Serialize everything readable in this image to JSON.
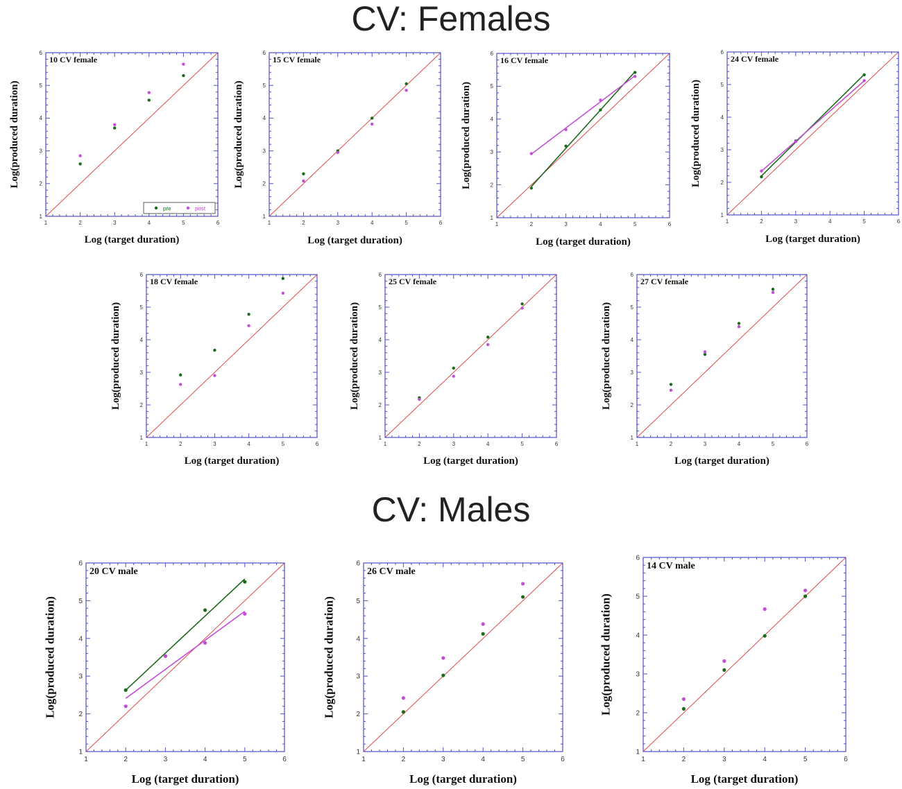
{
  "titles": {
    "females": "CV:  Females",
    "males": "CV:  Males"
  },
  "colors": {
    "pre": "#1b6b1b",
    "post": "#c34fd6",
    "identity": "#e04848",
    "frame": "#5050c8"
  },
  "legend": {
    "pre": "pre",
    "post": "post"
  },
  "chart_data": [
    {
      "type": "scatter",
      "title": "10 CV female",
      "xlabel": "Log (target duration)",
      "ylabel": "Log(produced duration)",
      "xlim": [
        1,
        6
      ],
      "ylim": [
        1,
        6
      ],
      "xticks": [
        "1",
        "2",
        "3",
        "4",
        "5",
        "6"
      ],
      "yticks": [
        "1",
        "2",
        "3",
        "4",
        "5",
        "6"
      ],
      "identity_line": true,
      "legend": "bottom-right",
      "series": [
        {
          "name": "pre",
          "x": [
            2,
            3,
            4,
            5
          ],
          "y": [
            2.6,
            3.7,
            4.55,
            5.3
          ],
          "fit_line": false
        },
        {
          "name": "post",
          "x": [
            2,
            3,
            4,
            5
          ],
          "y": [
            2.85,
            3.8,
            4.78,
            5.65
          ],
          "fit_line": false
        }
      ]
    },
    {
      "type": "scatter",
      "title": "15 CV female",
      "xlabel": "Log (target duration)",
      "ylabel": "Log(produced duration)",
      "xlim": [
        1,
        6
      ],
      "ylim": [
        1,
        6
      ],
      "xticks": [
        "1",
        "2",
        "3",
        "4",
        "5",
        "6"
      ],
      "yticks": [
        "1",
        "2",
        "3",
        "4",
        "5",
        "6"
      ],
      "identity_line": true,
      "series": [
        {
          "name": "pre",
          "x": [
            2,
            3,
            4,
            5
          ],
          "y": [
            2.3,
            3.0,
            4.0,
            5.05
          ],
          "fit_line": false
        },
        {
          "name": "post",
          "x": [
            2,
            3,
            4,
            5
          ],
          "y": [
            2.08,
            2.95,
            3.82,
            4.85
          ],
          "fit_line": false
        }
      ]
    },
    {
      "type": "scatter",
      "title": "16 CV female",
      "xlabel": "Log (target duration)",
      "ylabel": "Log(produced duration)",
      "xlim": [
        1,
        6
      ],
      "ylim": [
        1,
        6
      ],
      "xticks": [
        "1",
        "2",
        "3",
        "4",
        "5",
        "6"
      ],
      "yticks": [
        "1",
        "2",
        "3",
        "4",
        "5",
        "6"
      ],
      "identity_line": true,
      "series": [
        {
          "name": "pre",
          "x": [
            2,
            3,
            4,
            5
          ],
          "y": [
            1.9,
            3.18,
            4.28,
            5.42
          ],
          "fit_line": true
        },
        {
          "name": "post",
          "x": [
            2,
            3,
            4,
            5
          ],
          "y": [
            2.95,
            3.68,
            4.58,
            5.3
          ],
          "fit_line": true
        }
      ]
    },
    {
      "type": "scatter",
      "title": "24 CV female",
      "xlabel": "Log (target duration)",
      "ylabel": "Log(produced duration)",
      "xlim": [
        1,
        6
      ],
      "ylim": [
        1,
        6
      ],
      "xticks": [
        "1",
        "2",
        "3",
        "4",
        "5",
        "6"
      ],
      "yticks": [
        "1",
        "2",
        "3",
        "4",
        "5",
        "6"
      ],
      "identity_line": true,
      "series": [
        {
          "name": "pre",
          "x": [
            2,
            3,
            5
          ],
          "y": [
            2.17,
            3.27,
            5.3
          ],
          "fit_line": true
        },
        {
          "name": "post",
          "x": [
            2,
            3,
            5
          ],
          "y": [
            2.35,
            3.25,
            5.12
          ],
          "fit_line": true
        }
      ]
    },
    {
      "type": "scatter",
      "title": "18 CV female",
      "xlabel": "Log (target duration)",
      "ylabel": "Log(produced duration)",
      "xlim": [
        1,
        6
      ],
      "ylim": [
        1,
        6
      ],
      "xticks": [
        "1",
        "2",
        "3",
        "4",
        "5",
        "6"
      ],
      "yticks": [
        "1",
        "2",
        "3",
        "4",
        "5",
        "6"
      ],
      "identity_line": true,
      "series": [
        {
          "name": "pre",
          "x": [
            2,
            3,
            4,
            5
          ],
          "y": [
            2.92,
            3.68,
            4.78,
            5.88
          ],
          "fit_line": false
        },
        {
          "name": "post",
          "x": [
            2,
            3,
            4,
            5
          ],
          "y": [
            2.63,
            2.9,
            4.43,
            5.43
          ],
          "fit_line": false
        }
      ]
    },
    {
      "type": "scatter",
      "title": "25 CV female",
      "xlabel": "Log (target duration)",
      "ylabel": "Log(produced duration)",
      "xlim": [
        1,
        6
      ],
      "ylim": [
        1,
        6
      ],
      "xticks": [
        "1",
        "2",
        "3",
        "4",
        "5",
        "6"
      ],
      "yticks": [
        "1",
        "2",
        "3",
        "4",
        "5",
        "6"
      ],
      "identity_line": true,
      "series": [
        {
          "name": "pre",
          "x": [
            2,
            3,
            4,
            5
          ],
          "y": [
            2.22,
            3.13,
            4.08,
            5.1
          ],
          "fit_line": false
        },
        {
          "name": "post",
          "x": [
            2,
            3,
            4,
            5
          ],
          "y": [
            2.17,
            2.88,
            3.85,
            4.97
          ],
          "fit_line": false
        }
      ]
    },
    {
      "type": "scatter",
      "title": "27 CV female",
      "xlabel": "Log (target duration)",
      "ylabel": "Log(produced duration)",
      "xlim": [
        1,
        6
      ],
      "ylim": [
        1,
        6
      ],
      "xticks": [
        "1",
        "2",
        "3",
        "4",
        "5",
        "6"
      ],
      "yticks": [
        "1",
        "2",
        "3",
        "4",
        "5",
        "6"
      ],
      "identity_line": true,
      "series": [
        {
          "name": "pre",
          "x": [
            2,
            3,
            4,
            5
          ],
          "y": [
            2.63,
            3.55,
            4.5,
            5.55
          ],
          "fit_line": false
        },
        {
          "name": "post",
          "x": [
            2,
            3,
            4,
            5
          ],
          "y": [
            2.45,
            3.63,
            4.4,
            5.45
          ],
          "fit_line": false
        }
      ]
    },
    {
      "type": "scatter",
      "title": "20 CV male",
      "xlabel": "Log (target duration)",
      "ylabel": "Log(produced duration)",
      "xlim": [
        1,
        6
      ],
      "ylim": [
        1,
        6
      ],
      "xticks": [
        "1",
        "2",
        "3",
        "4",
        "5",
        "6"
      ],
      "yticks": [
        "1",
        "2",
        "3",
        "4",
        "5",
        "6"
      ],
      "identity_line": true,
      "series": [
        {
          "name": "pre",
          "x": [
            2,
            3,
            4,
            5
          ],
          "y": [
            2.63,
            3.53,
            4.75,
            5.5
          ],
          "fit_line": true
        },
        {
          "name": "post",
          "x": [
            2,
            3,
            4,
            5
          ],
          "y": [
            2.2,
            3.53,
            3.88,
            4.65
          ],
          "fit_line": true
        }
      ]
    },
    {
      "type": "scatter",
      "title": "26 CV male",
      "xlabel": "Log (target duration)",
      "ylabel": "Log(produced duration)",
      "xlim": [
        1,
        6
      ],
      "ylim": [
        1,
        6
      ],
      "xticks": [
        "1",
        "2",
        "3",
        "4",
        "5",
        "6"
      ],
      "yticks": [
        "1",
        "2",
        "3",
        "4",
        "5",
        "6"
      ],
      "identity_line": true,
      "series": [
        {
          "name": "pre",
          "x": [
            2,
            3,
            4,
            5
          ],
          "y": [
            2.05,
            3.02,
            4.12,
            5.1
          ],
          "fit_line": false
        },
        {
          "name": "post",
          "x": [
            2,
            3,
            4,
            5
          ],
          "y": [
            2.42,
            3.48,
            4.38,
            5.45
          ],
          "fit_line": false
        }
      ]
    },
    {
      "type": "scatter",
      "title": "14 CV male",
      "xlabel": "Log (target duration)",
      "ylabel": "Log(produced duration)",
      "xlim": [
        1,
        6
      ],
      "ylim": [
        1,
        6
      ],
      "xticks": [
        "1",
        "2",
        "3",
        "4",
        "5",
        "6"
      ],
      "yticks": [
        "1",
        "2",
        "3",
        "4",
        "5",
        "6"
      ],
      "identity_line": true,
      "series": [
        {
          "name": "pre",
          "x": [
            2,
            3,
            4,
            5
          ],
          "y": [
            2.1,
            3.1,
            3.98,
            5.0
          ],
          "fit_line": false
        },
        {
          "name": "post",
          "x": [
            2,
            3,
            4,
            5
          ],
          "y": [
            2.35,
            3.33,
            4.67,
            5.15
          ],
          "fit_line": false
        }
      ]
    }
  ]
}
